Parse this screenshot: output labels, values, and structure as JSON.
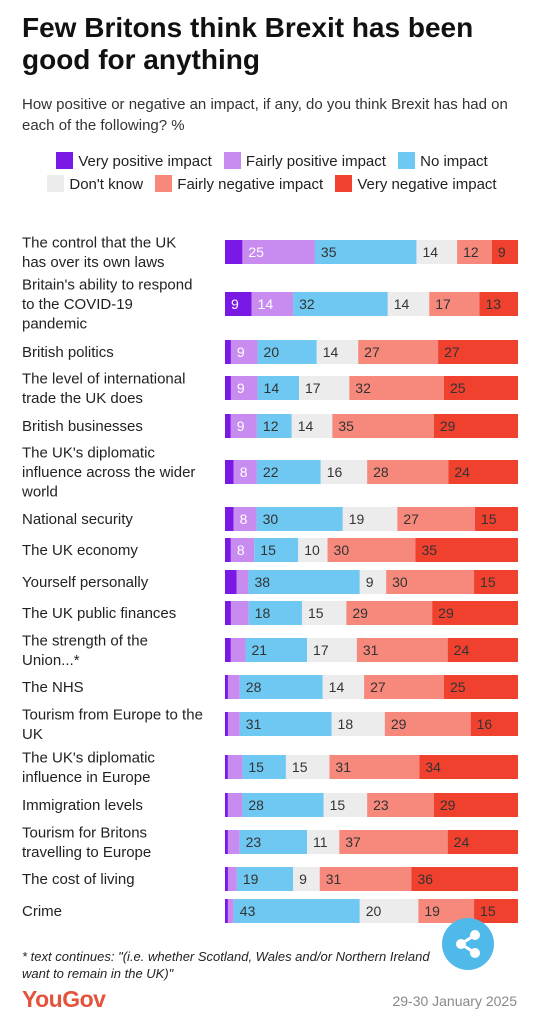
{
  "header": {
    "title": "Few Britons think Brexit has been good for anything",
    "subtitle": "How positive or negative an impact, if any, do you think Brexit has had on each of the following? %"
  },
  "legend": [
    {
      "label": "Very positive impact",
      "color": "#7a18e6"
    },
    {
      "label": "Fairly positive impact",
      "color": "#c88cf0"
    },
    {
      "label": "No impact",
      "color": "#6ec8f2"
    },
    {
      "label": "Don't know",
      "color": "#ececec"
    },
    {
      "label": "Fairly negative impact",
      "color": "#f7897c"
    },
    {
      "label": "Very negative impact",
      "color": "#f0412f"
    }
  ],
  "chart_data": {
    "type": "bar",
    "orientation": "horizontal",
    "stacked": true,
    "categories": [
      "The control that the UK has over its own laws",
      "Britain's ability to respond to the COVID-19 pandemic",
      "British politics",
      "The level of international trade the UK does",
      "British businesses",
      "The UK's diplomatic influence across the wider world",
      "National security",
      "The UK economy",
      "Yourself personally",
      "The UK public finances",
      "The strength of the Union...*",
      "The NHS",
      "Tourism from Europe to the UK",
      "The UK's diplomatic influence in Europe",
      "Immigration levels",
      "Tourism for Britons travelling to Europe",
      "The cost of living",
      "Crime"
    ],
    "category_lines": [
      [
        "The control that the UK",
        "has over its own laws"
      ],
      [
        "Britain's ability to respond",
        "to the COVID-19",
        "pandemic"
      ],
      [
        "British politics"
      ],
      [
        "The level of international",
        "trade the UK does"
      ],
      [
        "British businesses"
      ],
      [
        "The UK's diplomatic",
        "influence across the wider",
        "world"
      ],
      [
        "National security"
      ],
      [
        "The UK economy"
      ],
      [
        "Yourself personally"
      ],
      [
        "The UK public finances"
      ],
      [
        "The strength of the",
        "Union...*"
      ],
      [
        "The NHS"
      ],
      [
        "Tourism from Europe to the",
        "UK"
      ],
      [
        "The UK's diplomatic",
        "influence in Europe"
      ],
      [
        "Immigration levels"
      ],
      [
        "Tourism for Britons",
        "travelling to Europe"
      ],
      [
        "The cost of living"
      ],
      [
        "Crime"
      ]
    ],
    "series": [
      {
        "name": "Very positive impact",
        "color": "#7a18e6",
        "values": [
          6,
          9,
          2,
          2,
          2,
          3,
          3,
          2,
          4,
          2,
          2,
          1,
          1,
          1,
          1,
          1,
          1,
          1
        ]
      },
      {
        "name": "Fairly positive impact",
        "color": "#c88cf0",
        "values": [
          25,
          14,
          9,
          9,
          9,
          8,
          8,
          8,
          4,
          6,
          5,
          4,
          4,
          5,
          5,
          4,
          3,
          2
        ]
      },
      {
        "name": "No impact",
        "color": "#6ec8f2",
        "values": [
          35,
          32,
          20,
          14,
          12,
          22,
          30,
          15,
          38,
          18,
          21,
          28,
          31,
          15,
          28,
          23,
          19,
          43
        ]
      },
      {
        "name": "Don't know",
        "color": "#ececec",
        "values": [
          14,
          14,
          14,
          17,
          14,
          16,
          19,
          10,
          9,
          15,
          17,
          14,
          18,
          15,
          15,
          11,
          9,
          20
        ]
      },
      {
        "name": "Fairly negative impact",
        "color": "#f7897c",
        "values": [
          12,
          17,
          27,
          32,
          35,
          28,
          27,
          30,
          30,
          29,
          31,
          27,
          29,
          31,
          23,
          37,
          31,
          19
        ]
      },
      {
        "name": "Very negative impact",
        "color": "#f0412f",
        "values": [
          9,
          13,
          27,
          25,
          29,
          24,
          15,
          35,
          15,
          29,
          24,
          25,
          16,
          34,
          29,
          24,
          36,
          15
        ]
      }
    ],
    "labels_shown_from": 8,
    "xlim": [
      0,
      100
    ]
  },
  "footer": {
    "footnote": "* text continues: \"(i.e. whether Scotland, Wales and/or Northern Ireland want to remain in the UK)\"",
    "brand": "YouGov",
    "date": "29-30 January 2025"
  },
  "share": {
    "icon": "share-icon"
  }
}
